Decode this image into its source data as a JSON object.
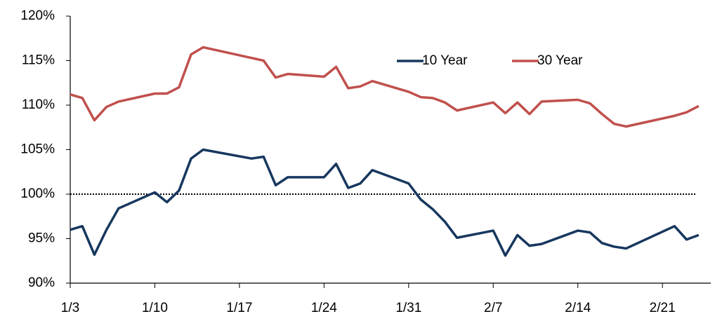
{
  "chart_data": {
    "type": "line",
    "series": [
      {
        "name": "10 Year",
        "color": "#17375e",
        "x": [
          0,
          1,
          2,
          3,
          4,
          7,
          8,
          9,
          10,
          11,
          15,
          16,
          17,
          18,
          21,
          22,
          23,
          24,
          25,
          28,
          29,
          30,
          31,
          32,
          35,
          36,
          37,
          38,
          39,
          42,
          43,
          44,
          45,
          46,
          50,
          51,
          52
        ],
        "values": [
          96.0,
          96.4,
          93.2,
          96.0,
          98.4,
          100.2,
          99.1,
          100.4,
          104.0,
          105.0,
          104.0,
          104.2,
          101.0,
          101.9,
          101.9,
          103.4,
          100.7,
          101.2,
          102.7,
          101.2,
          99.4,
          98.3,
          96.9,
          95.1,
          95.9,
          93.1,
          95.4,
          94.2,
          94.4,
          95.9,
          95.7,
          94.5,
          94.1,
          93.9,
          96.4,
          94.9,
          95.4
        ]
      },
      {
        "name": "30 Year",
        "color": "#c0504d",
        "x": [
          0,
          1,
          2,
          3,
          4,
          7,
          8,
          9,
          10,
          11,
          15,
          16,
          17,
          18,
          21,
          22,
          23,
          24,
          25,
          28,
          29,
          30,
          31,
          32,
          35,
          36,
          37,
          38,
          39,
          42,
          43,
          44,
          45,
          46,
          50,
          51,
          52
        ],
        "values": [
          111.2,
          110.8,
          108.3,
          109.8,
          110.4,
          111.3,
          111.3,
          112.0,
          115.7,
          116.5,
          115.3,
          115.0,
          113.1,
          113.5,
          113.2,
          114.3,
          111.9,
          112.1,
          112.7,
          111.5,
          110.9,
          110.8,
          110.3,
          109.4,
          110.3,
          109.1,
          110.3,
          109.0,
          110.4,
          110.6,
          110.2,
          109.0,
          107.9,
          107.6,
          108.8,
          109.2,
          109.9
        ]
      }
    ],
    "reference_line": 100,
    "xlim": [
      0,
      53
    ],
    "xticks": [
      {
        "value": 0,
        "label": "1/3"
      },
      {
        "value": 7,
        "label": "1/10"
      },
      {
        "value": 14,
        "label": "1/17"
      },
      {
        "value": 21,
        "label": "1/24"
      },
      {
        "value": 28,
        "label": "1/31"
      },
      {
        "value": 35,
        "label": "2/7"
      },
      {
        "value": 42,
        "label": "2/14"
      },
      {
        "value": 49,
        "label": "2/21"
      }
    ],
    "ylim": [
      90,
      120
    ],
    "yticks": [
      {
        "value": 90,
        "label": "90%"
      },
      {
        "value": 95,
        "label": "95%"
      },
      {
        "value": 100,
        "label": "100%"
      },
      {
        "value": 105,
        "label": "105%"
      },
      {
        "value": 110,
        "label": "110%"
      },
      {
        "value": 115,
        "label": "115%"
      },
      {
        "value": 120,
        "label": "120%"
      }
    ],
    "legend": "top-center"
  }
}
